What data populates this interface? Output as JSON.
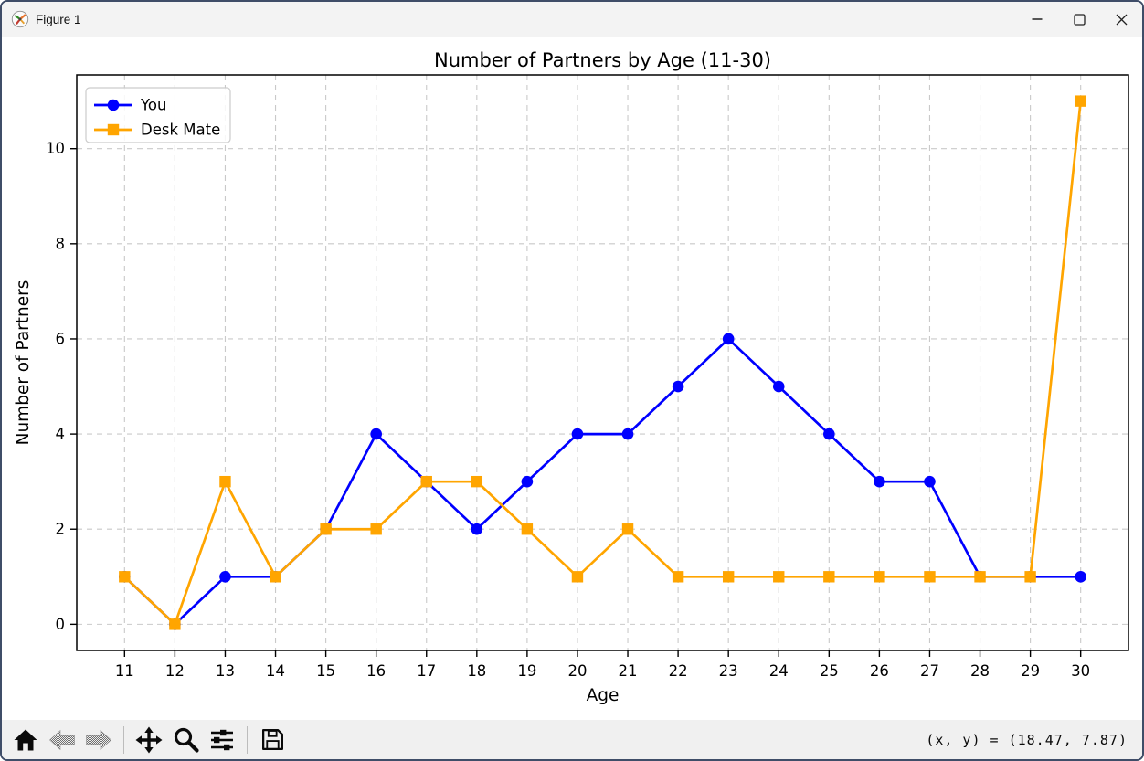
{
  "window": {
    "title": "Figure 1",
    "icon": "matplotlib-logo",
    "controls": [
      {
        "name": "minimize"
      },
      {
        "name": "maximize"
      },
      {
        "name": "close"
      }
    ]
  },
  "toolbar": {
    "buttons": [
      {
        "name": "home",
        "icon": "home-icon",
        "enabled": true
      },
      {
        "name": "back",
        "icon": "back-arrow-icon",
        "enabled": false
      },
      {
        "name": "forward",
        "icon": "forward-arrow-icon",
        "enabled": false
      },
      {
        "name": "pan",
        "icon": "pan-axes-icon",
        "enabled": true
      },
      {
        "name": "zoom",
        "icon": "zoom-magnifier-icon",
        "enabled": true
      },
      {
        "name": "configure-subplots",
        "icon": "sliders-icon",
        "enabled": true
      },
      {
        "name": "save",
        "icon": "save-floppy-icon",
        "enabled": true
      }
    ]
  },
  "statusbar": {
    "coordinates": "(x, y) = (18.47, 7.87)"
  },
  "chart_data": {
    "type": "line",
    "title": "Number of Partners by Age (11-30)",
    "xlabel": "Age",
    "ylabel": "Number of Partners",
    "x": [
      11,
      12,
      13,
      14,
      15,
      16,
      17,
      18,
      19,
      20,
      21,
      22,
      23,
      24,
      25,
      26,
      27,
      28,
      29,
      30
    ],
    "series": [
      {
        "name": "You",
        "color": "#0000ff",
        "marker": "circle",
        "values": [
          1,
          0,
          1,
          1,
          2,
          4,
          3,
          2,
          3,
          4,
          4,
          5,
          6,
          5,
          4,
          3,
          3,
          1,
          1,
          1
        ]
      },
      {
        "name": "Desk Mate",
        "color": "#ffa500",
        "marker": "square",
        "values": [
          1,
          0,
          3,
          1,
          2,
          2,
          3,
          3,
          2,
          1,
          2,
          1,
          1,
          1,
          1,
          1,
          1,
          1,
          1,
          11
        ]
      }
    ],
    "xticks": [
      11,
      12,
      13,
      14,
      15,
      16,
      17,
      18,
      19,
      20,
      21,
      22,
      23,
      24,
      25,
      26,
      27,
      28,
      29,
      30
    ],
    "yticks": [
      0,
      2,
      4,
      6,
      8,
      10
    ],
    "xlim": [
      10.05,
      30.95
    ],
    "ylim": [
      -0.55,
      11.55
    ],
    "grid": true,
    "grid_style": "dashed",
    "grid_color": "#c9c9c9",
    "legend": {
      "position": "upper-left",
      "entries": [
        "You",
        "Desk Mate"
      ]
    }
  }
}
